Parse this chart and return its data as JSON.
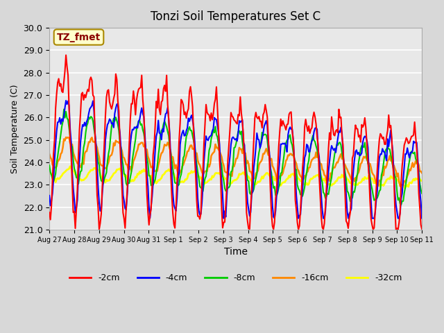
{
  "title": "Tonzi Soil Temperatures Set C",
  "xlabel": "Time",
  "ylabel": "Soil Temperature (C)",
  "ylim": [
    21.0,
    30.0
  ],
  "yticks": [
    21.0,
    22.0,
    23.0,
    24.0,
    25.0,
    26.0,
    27.0,
    28.0,
    29.0,
    30.0
  ],
  "xtick_labels": [
    "Aug 27",
    "Aug 28",
    "Aug 29",
    "Aug 30",
    "Aug 31",
    "Sep 1",
    "Sep 2",
    "Sep 3",
    "Sep 4",
    "Sep 5",
    "Sep 6",
    "Sep 7",
    "Sep 8",
    "Sep 9",
    "Sep 10",
    "Sep 11"
  ],
  "colors": {
    "-2cm": "#ff0000",
    "-4cm": "#0000ff",
    "-8cm": "#00cc00",
    "-16cm": "#ff8800",
    "-32cm": "#ffff00"
  },
  "line_widths": {
    "-2cm": 1.5,
    "-4cm": 1.5,
    "-8cm": 1.5,
    "-16cm": 1.8,
    "-32cm": 2.0
  },
  "annotation_text": "TZ_fmet",
  "annotation_color": "#8B0000",
  "annotation_bg": "#ffffcc",
  "annotation_border": "#aa8800",
  "plot_bg": "#e8e8e8",
  "fig_bg": "#d8d8d8",
  "n_points": 360
}
